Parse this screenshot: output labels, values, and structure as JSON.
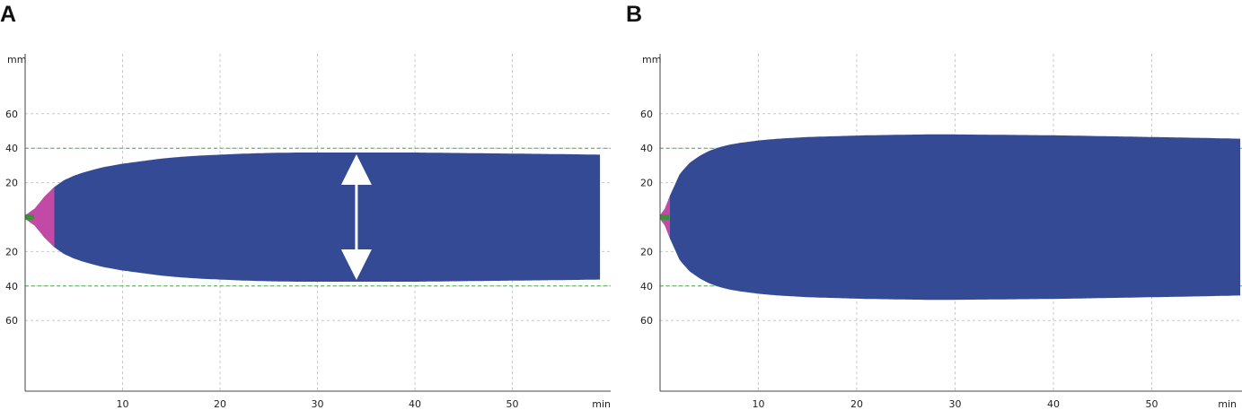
{
  "panels": [
    {
      "label": "A"
    },
    {
      "label": "B"
    }
  ],
  "colors": {
    "trace": "#344a94",
    "initial_phase": "#c24aa6",
    "baseline": "#3f8f3a",
    "reference_line": "#44b244",
    "grid": "#c8c8c8",
    "axis": "#444444",
    "arrow": "#ffffff"
  },
  "chart_data": [
    {
      "type": "area",
      "panel": "A",
      "x_unit_label": "min",
      "y_unit_label": "mm",
      "x_ticks": [
        10,
        20,
        30,
        40,
        50
      ],
      "y_ticks_upper": [
        60,
        40,
        20
      ],
      "y_ticks_lower": [
        20,
        40,
        60
      ],
      "xlim": [
        0,
        59
      ],
      "ylim": [
        0,
        100
      ],
      "grid": true,
      "reference_lines_mm": [
        40
      ],
      "annotation": "double-headed arrow marking maximum amplitude near 34 min",
      "arrow_x_min": 34,
      "initial_phase_end_min": 3,
      "amplitude_mm": {
        "x": [
          0,
          1,
          2,
          3,
          4,
          5,
          6,
          7,
          8,
          9,
          10,
          12,
          14,
          16,
          18,
          20,
          22,
          25,
          28,
          31,
          34,
          37,
          40,
          44,
          48,
          52,
          56,
          59
        ],
        "y": [
          2,
          10,
          24,
          35,
          43,
          48,
          52,
          55,
          58,
          60,
          62,
          65,
          68,
          70,
          71.5,
          72.5,
          73.5,
          74.5,
          75,
          75,
          75,
          75,
          75,
          74.5,
          74,
          73.5,
          73,
          72.5
        ]
      }
    },
    {
      "type": "area",
      "panel": "B",
      "x_unit_label": "min",
      "y_unit_label": "mm",
      "x_ticks": [
        10,
        20,
        30,
        40,
        50
      ],
      "y_ticks_upper": [
        60,
        40,
        20
      ],
      "y_ticks_lower": [
        20,
        40,
        60
      ],
      "xlim": [
        0,
        59
      ],
      "ylim": [
        0,
        100
      ],
      "grid": true,
      "reference_lines_mm": [
        40
      ],
      "initial_phase_end_min": 1,
      "amplitude_mm": {
        "x": [
          0,
          0.5,
          1,
          2,
          3,
          4,
          5,
          6,
          7,
          8,
          10,
          12,
          15,
          18,
          21,
          24,
          27,
          30,
          35,
          40,
          45,
          50,
          55,
          59
        ],
        "y": [
          2,
          10,
          25,
          50,
          63,
          71,
          77,
          81,
          84,
          86,
          89,
          91,
          93,
          94,
          95,
          95.5,
          96,
          96,
          95.5,
          95,
          94,
          93,
          92,
          91
        ]
      }
    }
  ]
}
